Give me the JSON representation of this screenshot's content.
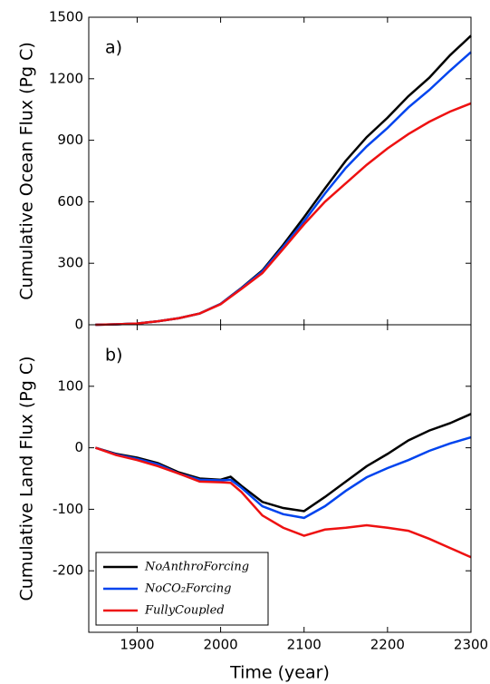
{
  "chart_data": [
    {
      "type": "line",
      "ylabel": "Cumulative Ocean Flux (Pg C)",
      "annotation": "a)",
      "x": [
        1850,
        1875,
        1900,
        1925,
        1950,
        1975,
        2000,
        2025,
        2050,
        2075,
        2100,
        2125,
        2150,
        2175,
        2200,
        2225,
        2250,
        2275,
        2300
      ],
      "series": [
        {
          "color": "#000000",
          "values": [
            0,
            2,
            6,
            17,
            32,
            55,
            102,
            180,
            265,
            390,
            525,
            665,
            800,
            915,
            1010,
            1115,
            1205,
            1315,
            1410
          ]
        },
        {
          "color": "#0044ee",
          "values": [
            0,
            2,
            6,
            17,
            32,
            55,
            102,
            178,
            260,
            380,
            505,
            640,
            765,
            870,
            960,
            1060,
            1145,
            1240,
            1330
          ]
        },
        {
          "color": "#ee1111",
          "values": [
            0,
            2,
            6,
            17,
            32,
            55,
            100,
            175,
            252,
            370,
            490,
            600,
            690,
            780,
            860,
            930,
            990,
            1040,
            1080
          ]
        }
      ],
      "xlim": [
        1842,
        2300
      ],
      "xticks": [
        1900,
        2000,
        2100,
        2200,
        2300
      ],
      "ylim": [
        0,
        1500
      ],
      "yticks": [
        0,
        300,
        600,
        900,
        1200,
        1500
      ]
    },
    {
      "type": "line",
      "ylabel": "Cumulative Land Flux (Pg C)",
      "xlabel": "Time (year)",
      "annotation": "b)",
      "x": [
        1850,
        1875,
        1900,
        1925,
        1950,
        1975,
        2000,
        2012,
        2025,
        2050,
        2075,
        2100,
        2125,
        2150,
        2175,
        2200,
        2225,
        2250,
        2275,
        2300
      ],
      "series": [
        {
          "name": "NoAnthroForcing",
          "color": "#000000",
          "values": [
            0,
            -10,
            -16,
            -25,
            -40,
            -50,
            -52,
            -47,
            -62,
            -88,
            -98,
            -103,
            -80,
            -55,
            -30,
            -10,
            12,
            28,
            40,
            55
          ]
        },
        {
          "name": "NoCO₂Forcing",
          "color": "#0044ee",
          "values": [
            0,
            -11,
            -18,
            -27,
            -42,
            -52,
            -53,
            -52,
            -65,
            -95,
            -108,
            -114,
            -95,
            -70,
            -48,
            -33,
            -20,
            -5,
            7,
            17
          ]
        },
        {
          "name": "FullyCoupled",
          "color": "#ee1111",
          "values": [
            0,
            -12,
            -20,
            -30,
            -42,
            -55,
            -56,
            -57,
            -72,
            -110,
            -130,
            -143,
            -133,
            -130,
            -126,
            -130,
            -135,
            -148,
            -163,
            -178
          ]
        }
      ],
      "xlim": [
        1842,
        2300
      ],
      "xticks": [
        1900,
        2000,
        2100,
        2200,
        2300
      ],
      "ylim": [
        -300,
        200
      ],
      "yticks": [
        -200,
        -100,
        0,
        100
      ],
      "legend": "lower left"
    }
  ]
}
